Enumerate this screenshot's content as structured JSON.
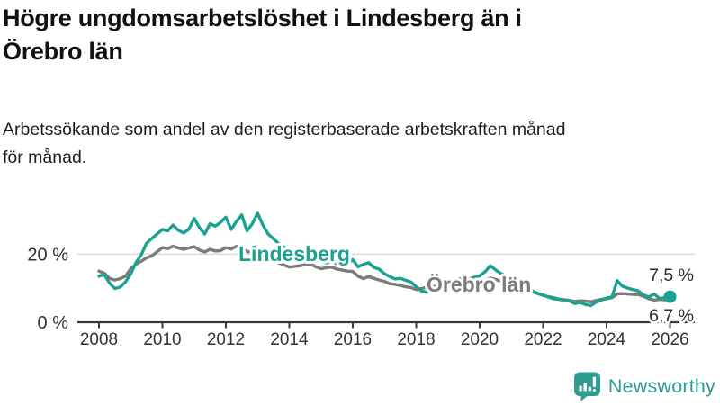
{
  "header": {
    "title_line1": "Högre ungdomsarbetslöshet i Lindesberg än i",
    "title_line2": "Örebro län",
    "subtitle_line1": "Arbetssökande som andel av den registerbaserade arbetskraften månad",
    "subtitle_line2": "för månad."
  },
  "chart_data": {
    "type": "line",
    "title": "Högre ungdomsarbetslöshet i Lindesberg än i Örebro län",
    "subtitle": "Arbetssökande som andel av den registerbaserade arbetskraften månad för månad.",
    "unit": "%",
    "x_start": 2008,
    "x_step": 0.1666667,
    "xlim": [
      2007.3,
      2026.8
    ],
    "ylim": [
      0,
      34
    ],
    "grid": "single horizontal gridline at 20 %",
    "legend_position": "inline labels on lines",
    "x_ticks": [
      {
        "value": 2008,
        "label": "2008"
      },
      {
        "value": 2010,
        "label": "2010"
      },
      {
        "value": 2012,
        "label": "2012"
      },
      {
        "value": 2014,
        "label": "2014"
      },
      {
        "value": 2016,
        "label": "2016"
      },
      {
        "value": 2018,
        "label": "2018"
      },
      {
        "value": 2020,
        "label": "2020"
      },
      {
        "value": 2022,
        "label": "2022"
      },
      {
        "value": 2024,
        "label": "2024"
      },
      {
        "value": 2026,
        "label": "2026"
      }
    ],
    "y_ticks": [
      {
        "value": 20,
        "label": "20 %"
      },
      {
        "value": 0,
        "label": "0 %"
      }
    ],
    "series": [
      {
        "name": "Lindesberg",
        "color": "#19A292",
        "end_value": 7.5,
        "end_label": "7,5 %",
        "values": [
          13.5,
          14.0,
          11.5,
          9.9,
          10.3,
          11.8,
          14.2,
          17.5,
          19.8,
          23.2,
          24.6,
          25.9,
          27.2,
          26.8,
          28.5,
          27.0,
          26.2,
          27.3,
          30.5,
          27.8,
          25.9,
          28.9,
          28.2,
          29.3,
          30.8,
          27.2,
          29.6,
          31.5,
          26.8,
          28.9,
          32.0,
          28.5,
          25.9,
          24.5,
          23.0,
          22.0,
          20.5,
          19.8,
          19.2,
          19.6,
          18.8,
          18.2,
          18.0,
          17.4,
          17.8,
          17.2,
          17.6,
          16.9,
          18.4,
          16.3,
          17.0,
          17.5,
          16.1,
          15.6,
          14.2,
          13.4,
          12.7,
          12.9,
          12.3,
          11.8,
          10.4,
          9.2,
          8.8,
          9.5,
          10.2,
          10.8,
          11.4,
          12.0,
          12.6,
          13.0,
          12.7,
          13.2,
          13.6,
          14.8,
          16.6,
          15.4,
          14.3,
          13.5,
          12.4,
          11.6,
          10.4,
          9.3,
          8.9,
          8.5,
          8.0,
          7.4,
          6.9,
          6.7,
          6.5,
          6.2,
          5.5,
          5.8,
          5.2,
          4.9,
          5.9,
          6.5,
          7.1,
          7.4,
          12.2,
          10.6,
          10.0,
          9.6,
          9.2,
          8.0,
          7.4,
          8.3,
          7.0,
          7.2,
          7.5
        ]
      },
      {
        "name": "Örebro län",
        "color": "#7B7B7B",
        "end_value": 6.7,
        "end_label": "6,7 %",
        "values": [
          15.0,
          14.4,
          12.9,
          12.4,
          12.8,
          13.5,
          15.7,
          17.0,
          17.9,
          18.9,
          19.5,
          20.7,
          21.9,
          21.6,
          22.3,
          21.8,
          21.4,
          21.8,
          22.2,
          21.2,
          20.6,
          21.4,
          20.9,
          21.0,
          21.9,
          21.5,
          22.3,
          21.9,
          20.8,
          20.4,
          20.1,
          19.2,
          18.8,
          18.2,
          17.4,
          16.8,
          16.2,
          16.4,
          16.6,
          16.9,
          17.1,
          16.3,
          15.7,
          16.0,
          16.2,
          15.6,
          15.3,
          15.0,
          14.9,
          13.5,
          12.8,
          13.4,
          12.9,
          12.4,
          12.0,
          11.3,
          11.1,
          10.8,
          10.4,
          10.2,
          9.6,
          9.9,
          10.3,
          10.6,
          10.4,
          10.7,
          10.9,
          10.6,
          10.8,
          11.0,
          10.9,
          11.2,
          11.5,
          12.3,
          13.0,
          12.6,
          12.0,
          11.6,
          11.0,
          10.5,
          10.0,
          9.6,
          9.2,
          8.4,
          7.9,
          7.5,
          7.2,
          6.8,
          6.6,
          6.4,
          6.1,
          6.3,
          6.2,
          6.0,
          6.4,
          6.7,
          6.9,
          7.2,
          8.3,
          8.4,
          8.3,
          8.2,
          8.1,
          7.6,
          6.9,
          6.5,
          6.7,
          6.6,
          6.7
        ]
      }
    ]
  },
  "brand": {
    "name": "Newsworthy",
    "color": "#2F9C92",
    "icon": "newsworthy-chart-bubble-icon"
  }
}
